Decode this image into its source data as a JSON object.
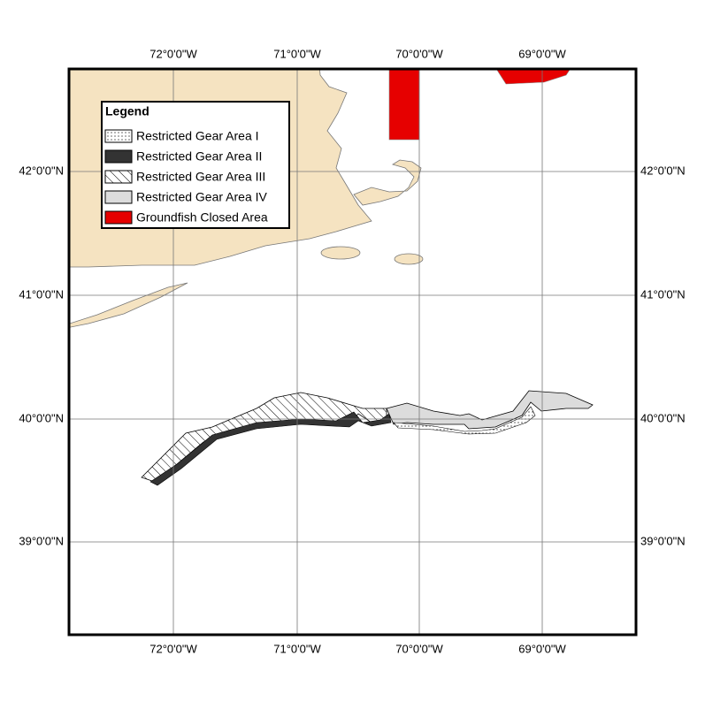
{
  "map": {
    "longitude_labels_top": [
      "72°0'0\"W",
      "71°0'0\"W",
      "70°0'0\"W",
      "69°0'0\"W"
    ],
    "longitude_labels_bottom": [
      "72°0'0\"W",
      "71°0'0\"W",
      "70°0'0\"W",
      "69°0'0\"W"
    ],
    "latitude_labels_left": [
      "42°0'0\"N",
      "41°0'0\"N",
      "40°0'0\"N",
      "39°0'0\"N"
    ],
    "latitude_labels_right": [
      "42°0'0\"N",
      "41°0'0\"N",
      "40°0'0\"N",
      "39°0'0\"N"
    ]
  },
  "legend": {
    "title": "Legend",
    "items": [
      "Restricted Gear Area I",
      "Restricted Gear Area II",
      "Restricted Gear Area III",
      "Restricted Gear Area IV",
      "Groundfish Closed Area"
    ]
  }
}
